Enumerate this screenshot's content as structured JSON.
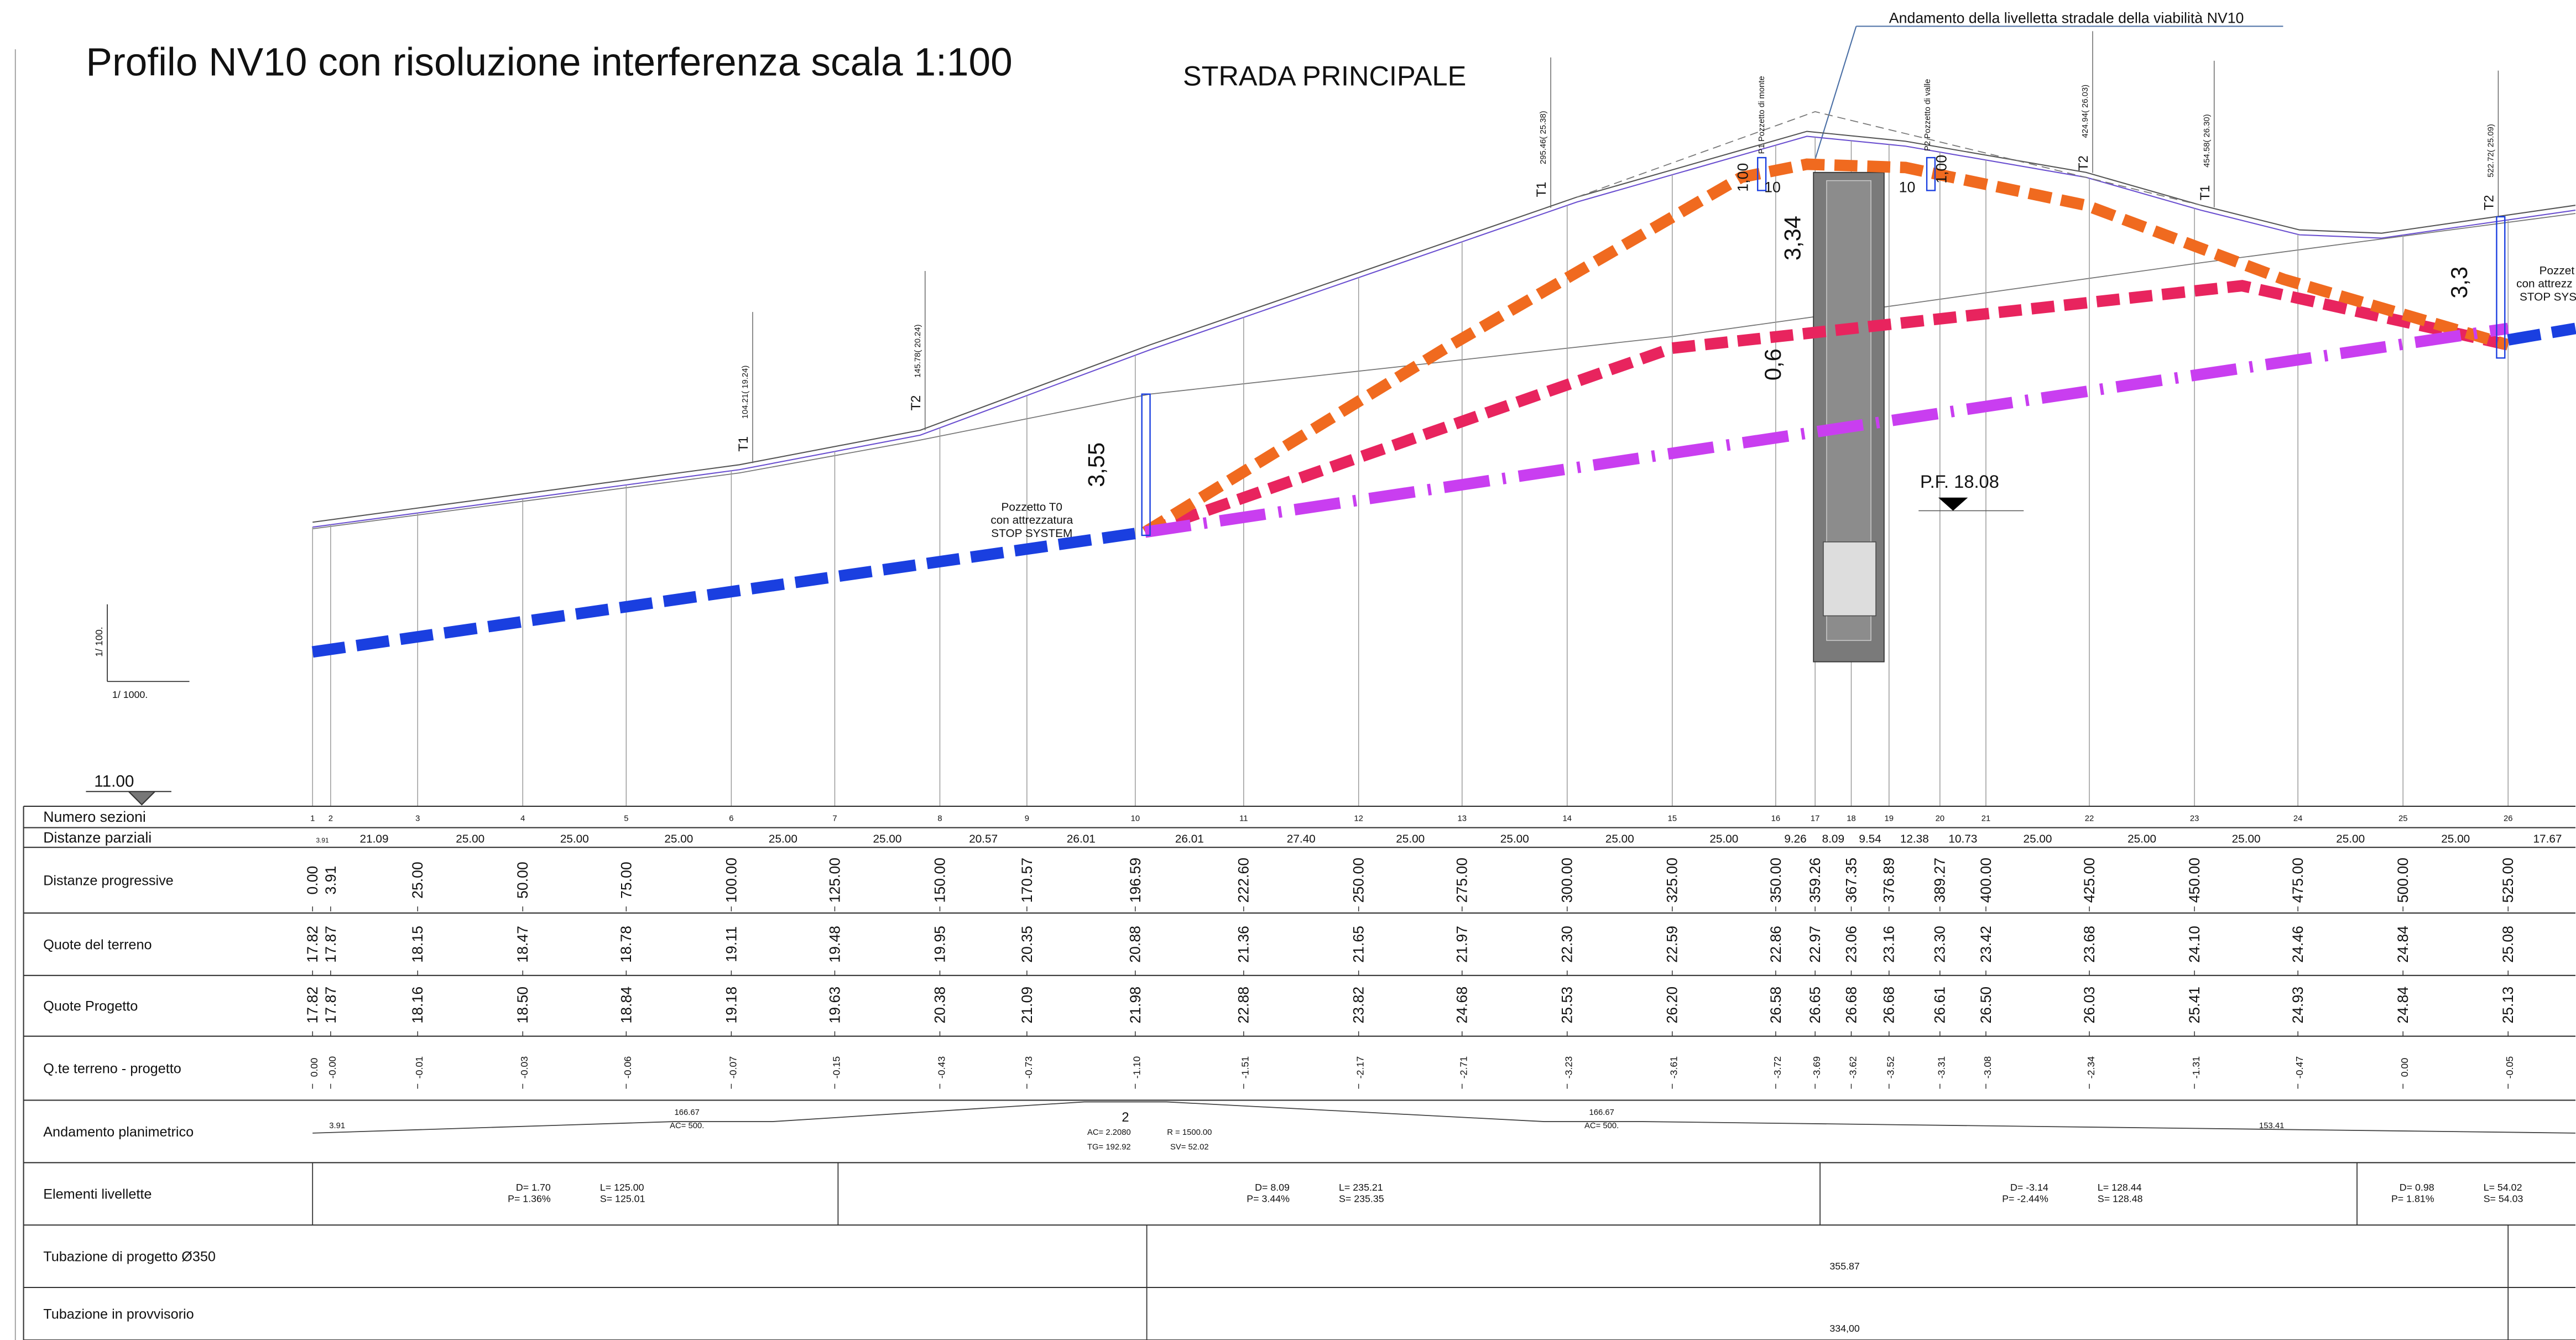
{
  "title": "Profilo NV10 con risoluzione interferenza scala 1:100",
  "subtitle": "STRADA PRINCIPALE",
  "road_note": "Andamento della livelletta stradale della viabilità NV10",
  "scale": {
    "vertical": "1/ 100.",
    "horizontal": "1/ 1000."
  },
  "datum": "11.00",
  "profile_labels": [
    "Pozzetto T0",
    "con attrezzatura",
    "STOP SYSTEM",
    "3,55",
    "3,34",
    "0,6",
    "1,00",
    "10",
    "10",
    "1,00",
    "3,3",
    "P.F. 18.08",
    "P1 Pozzetto di monte",
    "P2 Pozzetto di valle",
    "Pozzet",
    "con attrezz",
    "STOP SYS"
  ],
  "tangents": [
    {
      "name": "T1",
      "value": "104.21( 19.24)"
    },
    {
      "name": "T2",
      "value": "145.78( 20.24)"
    },
    {
      "name": "T1",
      "value": "295.46( 25.38)"
    },
    {
      "name": "T2",
      "value": "424.94( 26.03)"
    },
    {
      "name": "T1",
      "value": "454.58( 26.30)"
    },
    {
      "name": "T2",
      "value": "522.72( 25.09)"
    }
  ],
  "table": {
    "row_labels": [
      "Numero sezioni",
      "Distanze parziali",
      "Distanze progressive",
      "Quote del terreno",
      "Quote Progetto",
      "Q.te terreno - progetto",
      "Andamento planimetrico",
      "Elementi livellette",
      "Tubazione di progetto Ø350",
      "Tubazione in provvisorio"
    ],
    "sections": [
      "1",
      "2",
      "3",
      "4",
      "5",
      "6",
      "7",
      "8",
      "9",
      "10",
      "11",
      "12",
      "13",
      "14",
      "15",
      "16",
      "17",
      "18",
      "19",
      "20",
      "21",
      "22",
      "23",
      "24",
      "25",
      "26"
    ],
    "partial": [
      "3.91",
      "21.09",
      "25.00",
      "25.00",
      "25.00",
      "25.00",
      "25.00",
      "20.57",
      "26.01",
      "26.01",
      "27.40",
      "25.00",
      "25.00",
      "25.00",
      "25.00",
      "9.26",
      "8.09",
      "9.54",
      "12.38",
      "10.73",
      "25.00",
      "25.00",
      "25.00",
      "25.00",
      "25.00",
      "17.67"
    ],
    "progressive": [
      "0.00",
      "3.91",
      "25.00",
      "50.00",
      "75.00",
      "100.00",
      "125.00",
      "150.00",
      "170.57",
      "196.59",
      "222.60",
      "250.00",
      "275.00",
      "300.00",
      "325.00",
      "350.00",
      "359.26",
      "367.35",
      "376.89",
      "389.27",
      "400.00",
      "425.00",
      "450.00",
      "475.00",
      "500.00",
      "525.00"
    ],
    "ground": [
      "17.82",
      "17.87",
      "18.15",
      "18.47",
      "18.78",
      "19.11",
      "19.48",
      "19.95",
      "20.35",
      "20.88",
      "21.36",
      "21.65",
      "21.97",
      "22.30",
      "22.59",
      "22.86",
      "22.97",
      "23.06",
      "23.16",
      "23.30",
      "23.42",
      "23.68",
      "24.10",
      "24.46",
      "24.84",
      "25.08"
    ],
    "design": [
      "17.82",
      "17.87",
      "18.16",
      "18.50",
      "18.84",
      "19.18",
      "19.63",
      "20.38",
      "21.09",
      "21.98",
      "22.88",
      "23.82",
      "24.68",
      "25.53",
      "26.20",
      "26.58",
      "26.65",
      "26.68",
      "26.68",
      "26.61",
      "26.50",
      "26.03",
      "25.41",
      "24.93",
      "24.84",
      "25.13"
    ],
    "difference": [
      "0.00",
      "-0.00",
      "-0.01",
      "-0.03",
      "-0.06",
      "-0.07",
      "-0.15",
      "-0.43",
      "-0.73",
      "-1.10",
      "-1.51",
      "-2.17",
      "-2.71",
      "-3.23",
      "-3.61",
      "-3.72",
      "-3.69",
      "-3.62",
      "-3.52",
      "-3.31",
      "-3.08",
      "-2.34",
      "-1.31",
      "-0.47",
      "0.00",
      "-0.05"
    ],
    "planimetric": [
      "3.91",
      "166.67",
      "AC= 500.",
      "2",
      "AC= 2.2080",
      "R = 1500.00",
      "TG= 192.92",
      "SV= 52.02",
      "166.67",
      "AC= 500.",
      "153.41"
    ],
    "grades": [
      [
        "D= 1.70",
        "P= 1.36%",
        "L= 125.00",
        "S= 125.01"
      ],
      [
        "D= 8.09",
        "P= 3.44%",
        "L= 235.21",
        "S= 235.35"
      ],
      [
        "D= -3.14",
        "P= -2.44%",
        "L= 128.44",
        "S= 128.48"
      ],
      [
        "D= 0.98",
        "P= 1.81%",
        "L= 54.02",
        "S= 54.03"
      ]
    ],
    "pipe_design": "355.87",
    "pipe_temp": "334,00"
  }
}
